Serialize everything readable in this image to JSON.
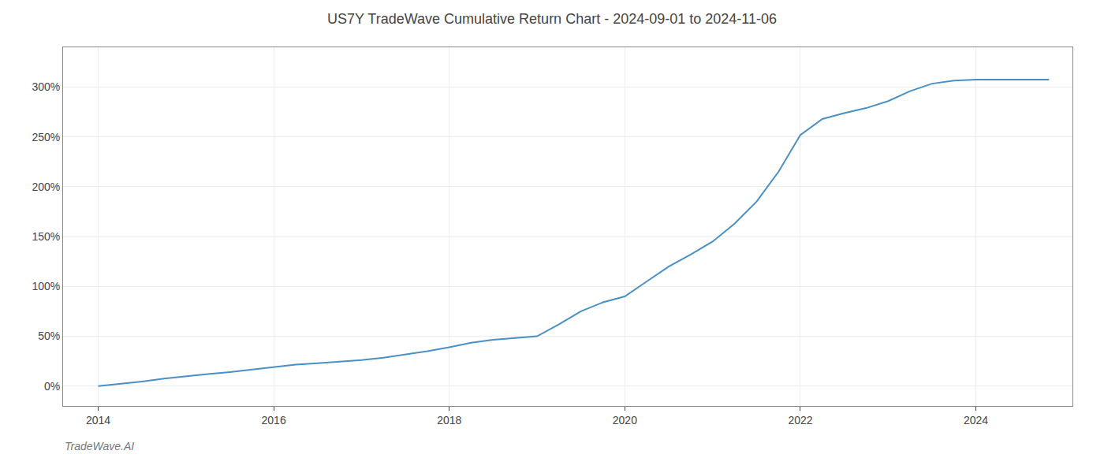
{
  "chart_data": {
    "type": "line",
    "title": "US7Y TradeWave Cumulative Return Chart - 2024-09-01 to 2024-11-06",
    "annotations": [
      "TradeWave.AI"
    ],
    "color": "#4a90c4",
    "grid": true,
    "x": [
      2014.0,
      2014.25,
      2014.5,
      2014.75,
      2015.0,
      2015.25,
      2015.5,
      2015.75,
      2016.0,
      2016.25,
      2016.5,
      2016.75,
      2017.0,
      2017.25,
      2017.5,
      2017.75,
      2018.0,
      2018.25,
      2018.5,
      2018.75,
      2019.0,
      2019.25,
      2019.5,
      2019.75,
      2020.0,
      2020.25,
      2020.5,
      2020.75,
      2021.0,
      2021.25,
      2021.5,
      2021.75,
      2022.0,
      2022.25,
      2022.5,
      2022.75,
      2023.0,
      2023.25,
      2023.5,
      2023.75,
      2024.0,
      2024.25,
      2024.5,
      2024.833
    ],
    "values": [
      0.0,
      2.0,
      4.5,
      7.5,
      10.0,
      12.0,
      14.0,
      16.5,
      19.0,
      21.5,
      23.0,
      24.5,
      26.0,
      28.5,
      31.5,
      35.0,
      39.0,
      43.5,
      46.5,
      48.5,
      50.0,
      62.0,
      75.0,
      84.0,
      90.0,
      105.0,
      120.0,
      132.0,
      145.0,
      163.0,
      185.0,
      215.0,
      252.0,
      268.0,
      274.0,
      279.0,
      286.0,
      296.0,
      303.5,
      306.5,
      307.5,
      307.5,
      307.5,
      307.5
    ],
    "xlim": [
      2013.6,
      2025.1
    ],
    "xticks": [
      2014,
      2016,
      2018,
      2020,
      2022,
      2024
    ],
    "ylim": [
      -20,
      340
    ],
    "yticks": [
      {
        "value": 0,
        "label": "0%"
      },
      {
        "value": 50,
        "label": "50%"
      },
      {
        "value": 100,
        "label": "100%"
      },
      {
        "value": 150,
        "label": "150%"
      },
      {
        "value": 200,
        "label": "200%"
      },
      {
        "value": 250,
        "label": "250%"
      },
      {
        "value": 300,
        "label": "300%"
      }
    ]
  }
}
